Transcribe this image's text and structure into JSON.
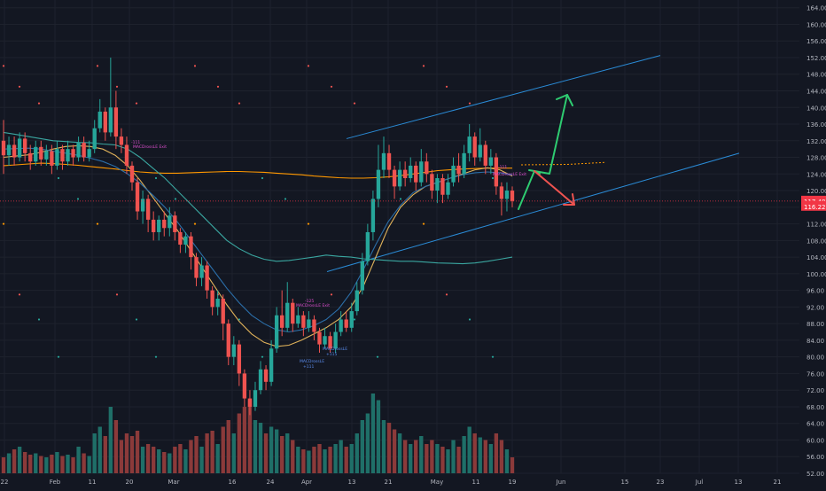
{
  "colors": {
    "background": "#131722",
    "grid": "#1e222d",
    "up": "#26a69a",
    "down": "#ef5350",
    "vol_up": "#1f6f68",
    "vol_down": "#8b3a3a",
    "axis_text": "#b2b5be",
    "price_line": "#f23645",
    "channel": "#2a8bd6",
    "arrow_up": "#2ecc71",
    "arrow_down": "#ef5350",
    "ma_orange": "#ff9800",
    "ma_gold": "#e0b25a",
    "ma_teal": "#3aa6a0",
    "ma_blue": "#2b6ea8",
    "dot_red": "#ef5350",
    "dot_green": "#26a69a",
    "dot_orange": "#ff9800",
    "label_blue": "#5b8def",
    "label_pink": "#e04fd0"
  },
  "chart_data": {
    "type": "candlestick",
    "y_ticks": [
      "164.00",
      "160.00",
      "156.00",
      "152.00",
      "148.00",
      "144.00",
      "140.00",
      "136.00",
      "132.00",
      "128.00",
      "124.00",
      "120.00",
      "116.00",
      "112.00",
      "108.00",
      "104.00",
      "100.00",
      "96.00",
      "92.00",
      "88.00",
      "84.00",
      "80.00",
      "76.00",
      "72.00",
      "68.00",
      "64.00",
      "60.00",
      "56.00",
      "52.00"
    ],
    "ylim": [
      52,
      165
    ],
    "x_ticks": [
      "22",
      "Feb",
      "11",
      "20",
      "Mar",
      "16",
      "24",
      "Apr",
      "13",
      "21",
      "May",
      "11",
      "19",
      "Jun",
      "15",
      "23",
      "Jul",
      "13",
      "21"
    ],
    "price_labels": [
      {
        "text": "117.48",
        "value": 117.48,
        "color": "#f23645"
      },
      {
        "text": "116.22",
        "value": 116.22,
        "color": "#f23645"
      }
    ],
    "annotations": [
      {
        "text": "-111",
        "kind": "pink"
      },
      {
        "text": "MACDrossLE Exit",
        "kind": "pink"
      },
      {
        "text": "MACDrossLE",
        "kind": "blue"
      },
      {
        "text": "+111",
        "kind": "blue"
      },
      {
        "text": "MACDrossLE",
        "kind": "blue"
      },
      {
        "text": "+115",
        "kind": "blue"
      },
      {
        "text": "-125",
        "kind": "pink"
      },
      {
        "text": "MACDrossLE Exit",
        "kind": "pink"
      },
      {
        "text": "-111",
        "kind": "pink"
      },
      {
        "text": "MACDrossLE Exit",
        "kind": "pink"
      }
    ],
    "candles": [
      {
        "o": 132.0,
        "c": 128.5,
        "h": 137,
        "l": 124,
        "v": 0.12
      },
      {
        "o": 128.5,
        "c": 131.0,
        "h": 133,
        "l": 126,
        "v": 0.15
      },
      {
        "o": 131.0,
        "c": 128.0,
        "h": 133,
        "l": 126,
        "v": 0.18
      },
      {
        "o": 128.0,
        "c": 132.5,
        "h": 134,
        "l": 127,
        "v": 0.2
      },
      {
        "o": 132.5,
        "c": 129.0,
        "h": 134,
        "l": 127,
        "v": 0.16
      },
      {
        "o": 129.0,
        "c": 127.0,
        "h": 131,
        "l": 125,
        "v": 0.14
      },
      {
        "o": 127.0,
        "c": 130.5,
        "h": 132,
        "l": 126,
        "v": 0.15
      },
      {
        "o": 130.5,
        "c": 127.5,
        "h": 132,
        "l": 126,
        "v": 0.13
      },
      {
        "o": 127.5,
        "c": 129.5,
        "h": 131,
        "l": 126,
        "v": 0.12
      },
      {
        "o": 129.5,
        "c": 126.0,
        "h": 131,
        "l": 124,
        "v": 0.14
      },
      {
        "o": 126.0,
        "c": 130.0,
        "h": 132,
        "l": 125,
        "v": 0.16
      },
      {
        "o": 130.0,
        "c": 127.0,
        "h": 131,
        "l": 125,
        "v": 0.13
      },
      {
        "o": 127.0,
        "c": 130.0,
        "h": 132,
        "l": 126,
        "v": 0.14
      },
      {
        "o": 130.0,
        "c": 128.0,
        "h": 131,
        "l": 126,
        "v": 0.12
      },
      {
        "o": 128.0,
        "c": 131.5,
        "h": 133,
        "l": 127,
        "v": 0.2
      },
      {
        "o": 131.5,
        "c": 128.0,
        "h": 133,
        "l": 127,
        "v": 0.15
      },
      {
        "o": 128.0,
        "c": 130.0,
        "h": 132,
        "l": 127,
        "v": 0.13
      },
      {
        "o": 130.0,
        "c": 135.0,
        "h": 137,
        "l": 129,
        "v": 0.3
      },
      {
        "o": 135.0,
        "c": 139.0,
        "h": 142,
        "l": 134,
        "v": 0.35
      },
      {
        "o": 139.0,
        "c": 134.0,
        "h": 140,
        "l": 132,
        "v": 0.28
      },
      {
        "o": 134.0,
        "c": 140.0,
        "h": 152,
        "l": 133,
        "v": 0.5
      },
      {
        "o": 140.0,
        "c": 133.0,
        "h": 144,
        "l": 130,
        "v": 0.4
      },
      {
        "o": 133.0,
        "c": 131.0,
        "h": 135,
        "l": 129,
        "v": 0.25
      },
      {
        "o": 131.0,
        "c": 126.0,
        "h": 133,
        "l": 124,
        "v": 0.3
      },
      {
        "o": 126.0,
        "c": 122.0,
        "h": 127,
        "l": 120,
        "v": 0.28
      },
      {
        "o": 122.0,
        "c": 115.0,
        "h": 123,
        "l": 113,
        "v": 0.32
      },
      {
        "o": 115.0,
        "c": 118.0,
        "h": 120,
        "l": 112,
        "v": 0.2
      },
      {
        "o": 118.0,
        "c": 113.0,
        "h": 119,
        "l": 110,
        "v": 0.22
      },
      {
        "o": 113.0,
        "c": 110.0,
        "h": 115,
        "l": 108,
        "v": 0.2
      },
      {
        "o": 110.0,
        "c": 113.0,
        "h": 114,
        "l": 108,
        "v": 0.18
      },
      {
        "o": 113.0,
        "c": 111.0,
        "h": 115,
        "l": 109,
        "v": 0.16
      },
      {
        "o": 111.0,
        "c": 114.0,
        "h": 116,
        "l": 109,
        "v": 0.15
      },
      {
        "o": 114.0,
        "c": 110.0,
        "h": 115,
        "l": 108,
        "v": 0.2
      },
      {
        "o": 110.0,
        "c": 107.0,
        "h": 111,
        "l": 105,
        "v": 0.22
      },
      {
        "o": 107.0,
        "c": 109.0,
        "h": 110,
        "l": 105,
        "v": 0.18
      },
      {
        "o": 109.0,
        "c": 104.0,
        "h": 110,
        "l": 101,
        "v": 0.25
      },
      {
        "o": 104.0,
        "c": 99.0,
        "h": 105,
        "l": 97,
        "v": 0.28
      },
      {
        "o": 99.0,
        "c": 102.0,
        "h": 104,
        "l": 97,
        "v": 0.2
      },
      {
        "o": 102.0,
        "c": 96.0,
        "h": 103,
        "l": 94,
        "v": 0.3
      },
      {
        "o": 96.0,
        "c": 92.0,
        "h": 97,
        "l": 90,
        "v": 0.32
      },
      {
        "o": 92.0,
        "c": 94.0,
        "h": 96,
        "l": 90,
        "v": 0.22
      },
      {
        "o": 94.0,
        "c": 88.0,
        "h": 95,
        "l": 84,
        "v": 0.35
      },
      {
        "o": 88.0,
        "c": 80.0,
        "h": 89,
        "l": 78,
        "v": 0.4
      },
      {
        "o": 80.0,
        "c": 83.0,
        "h": 85,
        "l": 78,
        "v": 0.3
      },
      {
        "o": 83.0,
        "c": 76.0,
        "h": 84,
        "l": 73,
        "v": 0.45
      },
      {
        "o": 76.0,
        "c": 70.0,
        "h": 77,
        "l": 68,
        "v": 0.5
      },
      {
        "o": 70.0,
        "c": 68.0,
        "h": 72,
        "l": 66,
        "v": 0.55
      },
      {
        "o": 68.0,
        "c": 72.0,
        "h": 74,
        "l": 67,
        "v": 0.4
      },
      {
        "o": 72.0,
        "c": 77.0,
        "h": 79,
        "l": 71,
        "v": 0.38
      },
      {
        "o": 77.0,
        "c": 74.0,
        "h": 78,
        "l": 72,
        "v": 0.3
      },
      {
        "o": 74.0,
        "c": 82.0,
        "h": 84,
        "l": 73,
        "v": 0.35
      },
      {
        "o": 82.0,
        "c": 90.0,
        "h": 92,
        "l": 81,
        "v": 0.33
      },
      {
        "o": 90.0,
        "c": 87.0,
        "h": 96,
        "l": 85,
        "v": 0.28
      },
      {
        "o": 87.0,
        "c": 93.0,
        "h": 98,
        "l": 86,
        "v": 0.3
      },
      {
        "o": 93.0,
        "c": 88.0,
        "h": 94,
        "l": 86,
        "v": 0.25
      },
      {
        "o": 88.0,
        "c": 90.0,
        "h": 92,
        "l": 87,
        "v": 0.2
      },
      {
        "o": 90.0,
        "c": 87.0,
        "h": 91,
        "l": 85,
        "v": 0.18
      },
      {
        "o": 87.0,
        "c": 89.0,
        "h": 91,
        "l": 86,
        "v": 0.17
      },
      {
        "o": 89.0,
        "c": 86.0,
        "h": 90,
        "l": 84,
        "v": 0.2
      },
      {
        "o": 86.0,
        "c": 83.0,
        "h": 87,
        "l": 81,
        "v": 0.22
      },
      {
        "o": 83.0,
        "c": 85.0,
        "h": 87,
        "l": 82,
        "v": 0.18
      },
      {
        "o": 85.0,
        "c": 82.0,
        "h": 86,
        "l": 81,
        "v": 0.2
      },
      {
        "o": 82.0,
        "c": 86.0,
        "h": 88,
        "l": 81,
        "v": 0.22
      },
      {
        "o": 86.0,
        "c": 89.0,
        "h": 91,
        "l": 85,
        "v": 0.25
      },
      {
        "o": 89.0,
        "c": 87.0,
        "h": 91,
        "l": 86,
        "v": 0.2
      },
      {
        "o": 87.0,
        "c": 91.0,
        "h": 93,
        "l": 86,
        "v": 0.22
      },
      {
        "o": 91.0,
        "c": 96.0,
        "h": 98,
        "l": 90,
        "v": 0.3
      },
      {
        "o": 96.0,
        "c": 103.0,
        "h": 105,
        "l": 95,
        "v": 0.4
      },
      {
        "o": 103.0,
        "c": 110.0,
        "h": 112,
        "l": 102,
        "v": 0.45
      },
      {
        "o": 110.0,
        "c": 118.0,
        "h": 120,
        "l": 108,
        "v": 0.6
      },
      {
        "o": 118.0,
        "c": 125.0,
        "h": 131,
        "l": 116,
        "v": 0.55
      },
      {
        "o": 125.0,
        "c": 129.0,
        "h": 133,
        "l": 123,
        "v": 0.4
      },
      {
        "o": 129.0,
        "c": 125.0,
        "h": 131,
        "l": 123,
        "v": 0.38
      },
      {
        "o": 125.0,
        "c": 121.0,
        "h": 126,
        "l": 118,
        "v": 0.33
      },
      {
        "o": 121.0,
        "c": 125.0,
        "h": 127,
        "l": 120,
        "v": 0.3
      },
      {
        "o": 125.0,
        "c": 123.0,
        "h": 127,
        "l": 121,
        "v": 0.25
      },
      {
        "o": 123.0,
        "c": 126.0,
        "h": 128,
        "l": 122,
        "v": 0.22
      },
      {
        "o": 126.0,
        "c": 122.0,
        "h": 127,
        "l": 120,
        "v": 0.25
      },
      {
        "o": 122.0,
        "c": 127.0,
        "h": 130,
        "l": 121,
        "v": 0.28
      },
      {
        "o": 127.0,
        "c": 124.0,
        "h": 129,
        "l": 122,
        "v": 0.22
      },
      {
        "o": 124.0,
        "c": 120.0,
        "h": 125,
        "l": 118,
        "v": 0.25
      },
      {
        "o": 120.0,
        "c": 123.0,
        "h": 124,
        "l": 117,
        "v": 0.22
      },
      {
        "o": 123.0,
        "c": 119.0,
        "h": 124,
        "l": 117,
        "v": 0.2
      },
      {
        "o": 119.0,
        "c": 122.0,
        "h": 124,
        "l": 118,
        "v": 0.18
      },
      {
        "o": 122.0,
        "c": 126.0,
        "h": 128,
        "l": 121,
        "v": 0.25
      },
      {
        "o": 126.0,
        "c": 124.0,
        "h": 129,
        "l": 122,
        "v": 0.2
      },
      {
        "o": 124.0,
        "c": 129.0,
        "h": 131,
        "l": 123,
        "v": 0.28
      },
      {
        "o": 129.0,
        "c": 133.0,
        "h": 136,
        "l": 127,
        "v": 0.35
      },
      {
        "o": 133.0,
        "c": 128.0,
        "h": 134,
        "l": 126,
        "v": 0.3
      },
      {
        "o": 128.0,
        "c": 131.0,
        "h": 135,
        "l": 127,
        "v": 0.27
      },
      {
        "o": 131.0,
        "c": 126.0,
        "h": 132,
        "l": 124,
        "v": 0.25
      },
      {
        "o": 126.0,
        "c": 128.0,
        "h": 130,
        "l": 124,
        "v": 0.22
      },
      {
        "o": 128.0,
        "c": 121.0,
        "h": 129,
        "l": 119,
        "v": 0.3
      },
      {
        "o": 121.0,
        "c": 118.0,
        "h": 122,
        "l": 114,
        "v": 0.25
      },
      {
        "o": 118.0,
        "c": 120.0,
        "h": 122,
        "l": 115,
        "v": 0.18
      },
      {
        "o": 120.0,
        "c": 117.5,
        "h": 121,
        "l": 116,
        "v": 0.12
      }
    ],
    "ma_series": [
      {
        "color_key": "ma_orange",
        "values": [
          126.0,
          126.2,
          126.4,
          126.6,
          126.5,
          126.3,
          126.1,
          125.8,
          125.5,
          125.2,
          124.8,
          124.5,
          124.3,
          124.2,
          124.2,
          124.3,
          124.4,
          124.5,
          124.6,
          124.6,
          124.5,
          124.4,
          124.2,
          124.0,
          123.8,
          123.5,
          123.3,
          123.1,
          123.0,
          123.0,
          123.1,
          123.3,
          123.6,
          124.0,
          124.4,
          124.8,
          125.0,
          125.2,
          125.3,
          125.4,
          125.4,
          125.4
        ]
      },
      {
        "color_key": "ma_gold",
        "values": [
          128.0,
          128.3,
          128.6,
          129.2,
          130.0,
          130.6,
          130.8,
          130.6,
          130.0,
          128.5,
          126.0,
          122.5,
          118.5,
          114.5,
          110.5,
          106.0,
          101.5,
          97.0,
          92.5,
          88.5,
          85.5,
          83.5,
          82.5,
          82.8,
          84.0,
          85.5,
          87.0,
          89.0,
          92.0,
          97.0,
          104.0,
          111.0,
          116.0,
          119.0,
          121.0,
          122.0,
          123.0,
          124.0,
          125.0,
          125.5,
          125.0,
          123.5
        ]
      },
      {
        "color_key": "ma_teal",
        "values": [
          134.0,
          133.5,
          133.0,
          132.5,
          132.0,
          131.8,
          131.6,
          131.5,
          131.2,
          131.0,
          130.0,
          128.0,
          125.5,
          123.0,
          120.0,
          117.0,
          114.0,
          111.0,
          108.0,
          106.0,
          104.5,
          103.5,
          103.0,
          103.2,
          103.6,
          104.0,
          104.5,
          104.2,
          104.0,
          103.6,
          103.4,
          103.2,
          103.0,
          103.0,
          102.8,
          102.6,
          102.5,
          102.4,
          102.6,
          103.0,
          103.5,
          104.0
        ]
      },
      {
        "color_key": "ma_blue",
        "values": [
          130.0,
          130.1,
          130.2,
          130.0,
          129.5,
          129.0,
          128.5,
          127.8,
          127.0,
          125.8,
          124.0,
          121.8,
          119.0,
          116.0,
          112.5,
          108.5,
          104.5,
          100.5,
          96.5,
          93.0,
          90.0,
          88.0,
          86.5,
          86.0,
          86.5,
          87.5,
          89.0,
          91.5,
          95.5,
          101.0,
          107.0,
          112.5,
          116.5,
          119.5,
          121.0,
          122.0,
          123.0,
          123.8,
          124.3,
          124.5,
          124.3,
          123.8
        ]
      }
    ]
  }
}
